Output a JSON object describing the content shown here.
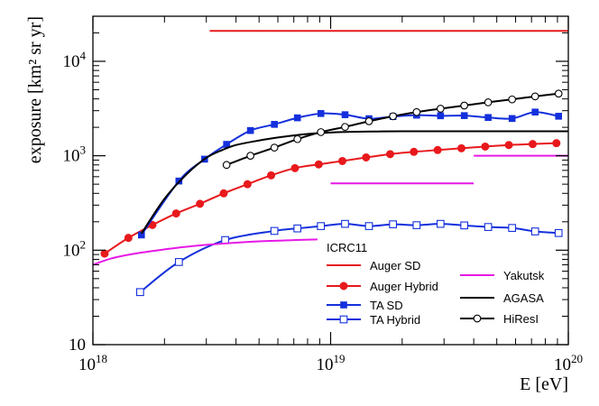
{
  "chart_data": {
    "type": "line",
    "title": "",
    "xlabel": "E [eV]",
    "ylabel": "exposure [km² sr yr]",
    "x_scale": "log",
    "y_scale": "log",
    "xlim": [
      1e+18,
      1e+20
    ],
    "ylim": [
      10,
      30000
    ],
    "x_ticks": [
      {
        "value": 1e+18,
        "base": "10",
        "exp": "18"
      },
      {
        "value": 1e+19,
        "base": "10",
        "exp": "19"
      },
      {
        "value": 1e+20,
        "base": "10",
        "exp": "20"
      }
    ],
    "y_ticks": [
      {
        "value": 10,
        "base": "10",
        "exp": ""
      },
      {
        "value": 100,
        "base": "10",
        "exp": "2"
      },
      {
        "value": 1000,
        "base": "10",
        "exp": "3"
      },
      {
        "value": 10000,
        "base": "10",
        "exp": "4"
      }
    ],
    "legend_title": "ICRC11",
    "series": [
      {
        "name": "Auger SD",
        "color": "#e8191c",
        "marker": "none",
        "x": [
          3.1e+18,
          1e+20
        ],
        "y": [
          21000,
          21000
        ]
      },
      {
        "name": "Auger Hybrid",
        "color": "#e8191c",
        "marker": "filled-circle",
        "x": [
          1.12e+18,
          1.41e+18,
          1.78e+18,
          2.24e+18,
          2.82e+18,
          3.55e+18,
          4.47e+18,
          5.62e+18,
          7.08e+18,
          8.91e+18,
          1.12e+19,
          1.41e+19,
          1.78e+19,
          2.24e+19,
          2.82e+19,
          3.55e+19,
          4.47e+19,
          5.62e+19,
          7.08e+19,
          8.91e+19
        ],
        "y": [
          92,
          135,
          185,
          245,
          310,
          400,
          500,
          620,
          740,
          810,
          880,
          960,
          1040,
          1100,
          1150,
          1200,
          1250,
          1300,
          1330,
          1360
        ]
      },
      {
        "name": "TA SD",
        "color": "#1430dc",
        "marker": "filled-square",
        "x": [
          1.6e+18,
          2.3e+18,
          2.95e+18,
          3.65e+18,
          4.6e+18,
          5.8e+18,
          7.25e+18,
          9.1e+18,
          1.15e+19,
          1.45e+19,
          1.83e+19,
          2.3e+19,
          2.9e+19,
          3.65e+19,
          4.6e+19,
          5.8e+19,
          7.25e+19,
          9.1e+19
        ],
        "y": [
          145,
          540,
          920,
          1320,
          1850,
          2150,
          2520,
          2800,
          2720,
          2470,
          2600,
          2690,
          2650,
          2660,
          2540,
          2480,
          2900,
          2620
        ]
      },
      {
        "name": "TA Hybrid",
        "color": "#1430dc",
        "marker": "open-square",
        "x": [
          1.58e+18,
          2.3e+18,
          3.6e+18,
          5.8e+18,
          7.25e+18,
          9.1e+18,
          1.15e+19,
          1.45e+19,
          1.83e+19,
          2.3e+19,
          2.9e+19,
          3.65e+19,
          4.6e+19,
          5.8e+19,
          7.25e+19,
          9.1e+19
        ],
        "y": [
          36,
          75,
          128,
          160,
          170,
          180,
          190,
          180,
          188,
          184,
          190,
          183,
          176,
          172,
          158,
          152
        ]
      },
      {
        "name": "Yakutsk",
        "color": "#e619e6",
        "marker": "none",
        "segments": [
          {
            "x": [
              1e+18,
              1.2e+18,
              1.5e+18,
              2e+18,
              2.5e+18,
              3e+18,
              4e+18,
              5e+18,
              6e+18,
              7e+18,
              8.8e+18
            ],
            "y": [
              70,
              82,
              92,
              102,
              109,
              114,
              120,
              124,
              126,
              128,
              130
            ]
          },
          {
            "x": [
              1e+19,
              4e+19
            ],
            "y": [
              510,
              510
            ]
          },
          {
            "x": [
              4e+19,
              1e+20
            ],
            "y": [
              1000,
              1000
            ]
          }
        ]
      },
      {
        "name": "AGASA",
        "color": "#000000",
        "marker": "none",
        "x": [
          1.6e+18,
          2e+18,
          2.5e+18,
          3e+18,
          3.5e+18,
          4e+18,
          5e+18,
          6e+18,
          7e+18,
          8e+18,
          1e+19,
          1.2e+19,
          1.5e+19,
          2e+19,
          5e+19,
          1e+20
        ],
        "y": [
          150,
          350,
          650,
          950,
          1150,
          1300,
          1450,
          1560,
          1640,
          1700,
          1760,
          1790,
          1805,
          1815,
          1815,
          1815
        ]
      },
      {
        "name": "HiResI",
        "color": "#000000",
        "marker": "open-circle",
        "x": [
          3.65e+18,
          4.6e+18,
          5.8e+18,
          7.25e+18,
          9.1e+18,
          1.15e+19,
          1.45e+19,
          1.83e+19,
          2.3e+19,
          2.9e+19,
          3.65e+19,
          4.6e+19,
          5.8e+19,
          7.25e+19,
          9.1e+19
        ],
        "y": [
          800,
          1000,
          1220,
          1500,
          1780,
          2020,
          2320,
          2620,
          2900,
          3150,
          3400,
          3680,
          3950,
          4250,
          4550
        ]
      }
    ]
  }
}
